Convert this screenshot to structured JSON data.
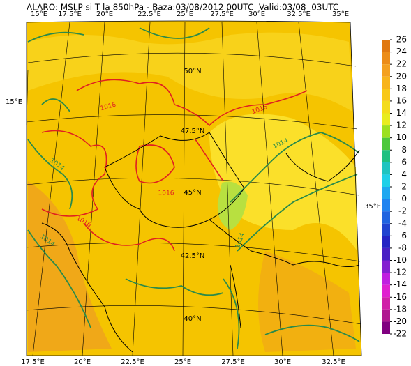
{
  "title": "ALARO: MSLP si T la 850hPa - Baza:03/08/2012 00UTC  Valid:03/08  03UTC",
  "top_lon_labels": [
    "15°E",
    "17.5°E",
    "20°E",
    "22.5°E",
    "25°E",
    "27.5°E",
    "30°E",
    "32.5°E",
    "35°E"
  ],
  "bottom_lon_labels": [
    "17.5°E",
    "20°E",
    "22.5°E",
    "25°E",
    "27.5°E",
    "30°E",
    "32.5°E"
  ],
  "left_label": "15°E",
  "right_label": "35°E",
  "lat_labels": [
    "50°N",
    "47.5°N",
    "45°N",
    "42.5°N",
    "40°N"
  ],
  "contour_labels": [
    "1016",
    "1016",
    "1016",
    "1016",
    "1014",
    "1014",
    "1014",
    "1014"
  ],
  "colorbar": {
    "levels": [
      26,
      24,
      22,
      20,
      18,
      16,
      14,
      12,
      10,
      8,
      6,
      4,
      2,
      0,
      -2,
      -4,
      -6,
      -8,
      -10,
      -12,
      -14,
      -16,
      -18,
      -20,
      -22
    ],
    "colors": [
      "#e07810",
      "#ec8c18",
      "#f4a020",
      "#f8b41c",
      "#f8c818",
      "#f4dc1c",
      "#e8ec20",
      "#9ce020",
      "#4cc83c",
      "#20c080",
      "#20c4c0",
      "#20d0e8",
      "#20a8f0",
      "#2084f0",
      "#2064e0",
      "#2044d0",
      "#2424c4",
      "#4820c4",
      "#8420d0",
      "#c020e0",
      "#e020d0",
      "#d020a8",
      "#b01890",
      "#800080"
    ]
  }
}
